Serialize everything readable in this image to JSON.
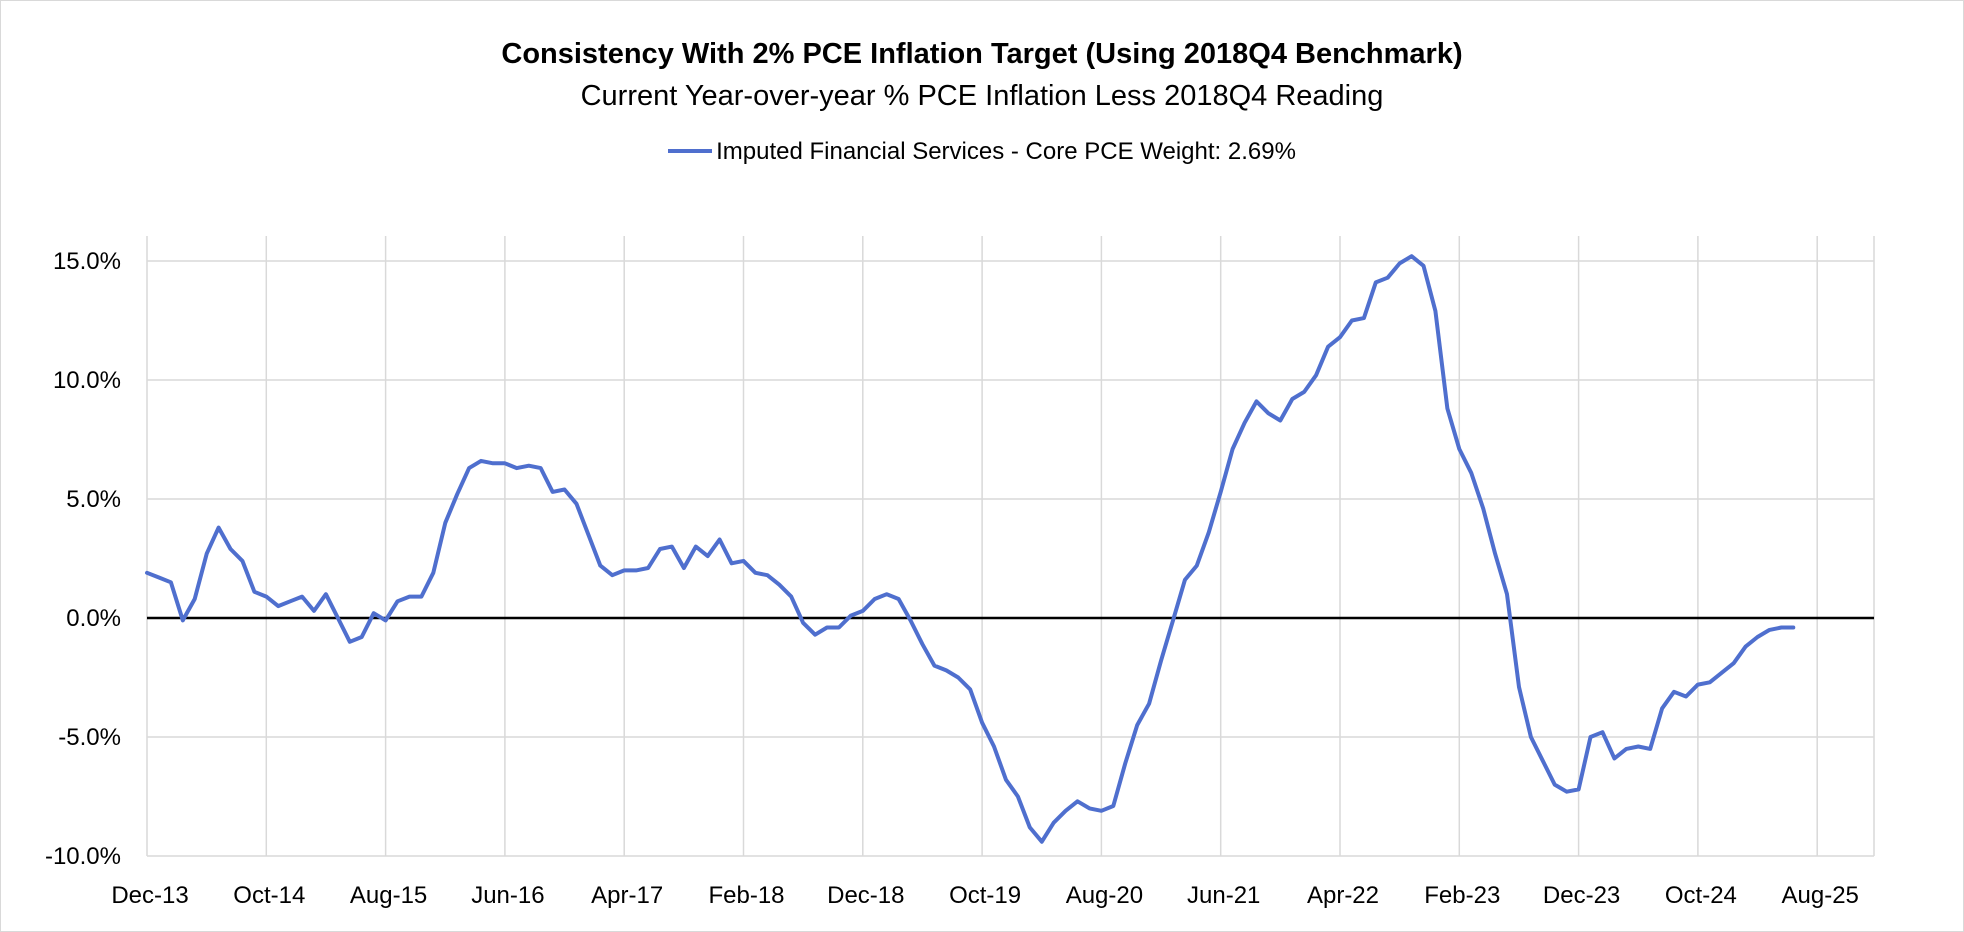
{
  "chart_data": {
    "type": "line",
    "title": "Consistency With 2% PCE Inflation Target (Using 2018Q4 Benchmark)",
    "subtitle": "Current Year-over-year % PCE Inflation Less 2018Q4 Reading",
    "xlabel": "",
    "ylabel": "",
    "ylim": [
      -10,
      15
    ],
    "y_ticks": [
      "15.0%",
      "10.0%",
      "5.0%",
      "0.0%",
      "-5.0%",
      "-10.0%"
    ],
    "y_tick_values": [
      15,
      10,
      5,
      0,
      -5,
      -10
    ],
    "x_ticks": [
      "Dec-13",
      "Oct-14",
      "Aug-15",
      "Jun-16",
      "Apr-17",
      "Feb-18",
      "Dec-18",
      "Oct-19",
      "Aug-20",
      "Jun-21",
      "Apr-22",
      "Feb-23",
      "Dec-23",
      "Oct-24",
      "Aug-25"
    ],
    "x_start": "Dec-13",
    "grid": true,
    "legend_position": "top-center",
    "series": [
      {
        "name": "Imputed Financial Services - Core PCE Weight: 2.69%",
        "color": "#4f6fce",
        "values": [
          1.9,
          1.7,
          1.5,
          -0.1,
          0.8,
          2.7,
          3.8,
          2.9,
          2.4,
          1.1,
          0.9,
          0.5,
          0.7,
          0.9,
          0.3,
          1.0,
          0.0,
          -1.0,
          -0.8,
          0.2,
          -0.1,
          0.7,
          0.9,
          0.9,
          1.9,
          4.0,
          5.2,
          6.3,
          6.6,
          6.5,
          6.5,
          6.3,
          6.4,
          6.3,
          5.3,
          5.4,
          4.8,
          3.5,
          2.2,
          1.8,
          2.0,
          2.0,
          2.1,
          2.9,
          3.0,
          2.1,
          3.0,
          2.6,
          3.3,
          2.3,
          2.4,
          1.9,
          1.8,
          1.4,
          0.9,
          -0.2,
          -0.7,
          -0.4,
          -0.4,
          0.1,
          0.3,
          0.8,
          1.0,
          0.8,
          -0.1,
          -1.1,
          -2.0,
          -2.2,
          -2.5,
          -3.0,
          -4.4,
          -5.4,
          -6.8,
          -7.5,
          -8.8,
          -9.4,
          -8.6,
          -8.1,
          -7.7,
          -8.0,
          -8.1,
          -7.9,
          -6.1,
          -4.5,
          -3.6,
          -1.8,
          -0.1,
          1.6,
          2.2,
          3.6,
          5.3,
          7.1,
          8.2,
          9.1,
          8.6,
          8.3,
          9.2,
          9.5,
          10.2,
          11.4,
          11.8,
          12.5,
          12.6,
          14.1,
          14.3,
          14.9,
          15.2,
          14.8,
          12.9,
          8.8,
          7.1,
          6.1,
          4.6,
          2.7,
          1.0,
          -2.9,
          -5.0,
          -6.0,
          -7.0,
          -7.3,
          -7.2,
          -5.0,
          -4.8,
          -5.9,
          -5.5,
          -5.4,
          -5.5,
          -3.8,
          -3.1,
          -3.3,
          -2.8,
          -2.7,
          -2.3,
          -1.9,
          -1.2,
          -0.8,
          -0.5,
          -0.4,
          -0.4
        ]
      }
    ]
  },
  "colors": {
    "series": "#4f6fce",
    "grid": "#d9d9d9",
    "zero_line": "#000000"
  }
}
